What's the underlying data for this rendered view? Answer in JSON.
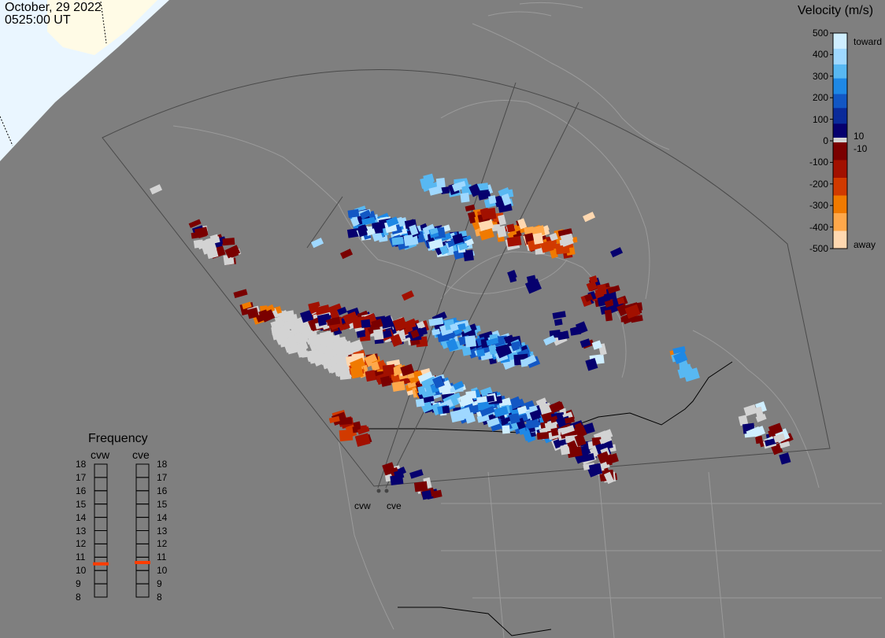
{
  "header": {
    "date": "October, 29 2022",
    "time": "0525:00 UT"
  },
  "colorbar": {
    "title": "Velocity (m/s)",
    "ticks": [
      "500",
      "400",
      "300",
      "200",
      "100",
      "0",
      "-100",
      "-200",
      "-300",
      "-400",
      "-500"
    ],
    "label_toward": "toward",
    "label_away": "away",
    "label_pos_threshold": "10",
    "label_neg_threshold": "-10",
    "colors": [
      "#cfeeff",
      "#9fd8ff",
      "#58b8f2",
      "#1e88e5",
      "#1257c4",
      "#0a2b9a",
      "#06006e",
      "#7a0000",
      "#a21000",
      "#d13a00",
      "#f07a00",
      "#ffa84a",
      "#ffd8b0"
    ]
  },
  "frequency": {
    "title": "Frequency",
    "sites": [
      {
        "name": "cvw",
        "current": "10.5"
      },
      {
        "name": "cve",
        "current": "10.6"
      }
    ],
    "ticks": [
      "18",
      "17",
      "16",
      "15",
      "14",
      "13",
      "12",
      "11",
      "10",
      "9",
      "8"
    ],
    "marker_color": "#ff3c00"
  },
  "radar_sites": [
    "cvw",
    "cve"
  ],
  "colors": {
    "background": "#7f7f7f",
    "daylight": "#eaf6ff",
    "coastline": "#9b9b9b",
    "border": "#000000",
    "ground_scatter": "#d3d3d3"
  }
}
